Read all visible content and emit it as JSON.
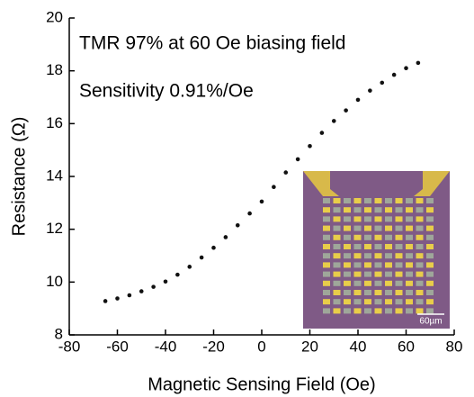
{
  "chart_data": {
    "type": "scatter",
    "x_label": "Magnetic Sensing Field (Oe)",
    "y_label": "Resistance (Ω)",
    "annotations": [
      "TMR 97% at 60 Oe biasing field",
      "Sensitivity 0.91%/Oe"
    ],
    "inset_scale_label": "60µm",
    "color": "#111111",
    "x": [
      -65,
      -60,
      -55,
      -50,
      -45,
      -40,
      -35,
      -30,
      -25,
      -20,
      -15,
      -10,
      -5,
      0,
      5,
      10,
      15,
      20,
      25,
      30,
      35,
      40,
      45,
      50,
      55,
      60,
      65
    ],
    "values": [
      9.28,
      9.38,
      9.5,
      9.65,
      9.82,
      10.02,
      10.28,
      10.58,
      10.93,
      11.3,
      11.7,
      12.15,
      12.6,
      13.05,
      13.6,
      14.15,
      14.65,
      15.15,
      15.65,
      16.1,
      16.5,
      16.9,
      17.25,
      17.55,
      17.85,
      18.1,
      18.3
    ],
    "xlim": [
      -80,
      80
    ],
    "xticks": [
      -80,
      -60,
      -40,
      -20,
      0,
      20,
      40,
      60,
      80
    ],
    "ylim": [
      8,
      20
    ],
    "yticks": [
      8,
      10,
      12,
      14,
      16,
      18,
      20
    ]
  }
}
